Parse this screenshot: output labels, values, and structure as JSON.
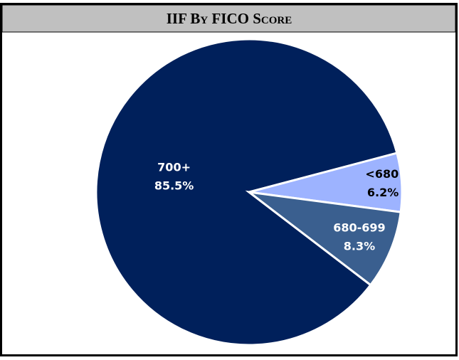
{
  "chart_data": {
    "type": "pie",
    "title": "IIF By FICO Score",
    "categories": [
      "700+",
      "<680",
      "680-699"
    ],
    "values": [
      85.5,
      6.2,
      8.3
    ],
    "value_labels": [
      "85.5%",
      "6.2%",
      "8.3%"
    ],
    "colors": [
      "#00205b",
      "#9db3ff",
      "#3a5f8f"
    ]
  }
}
